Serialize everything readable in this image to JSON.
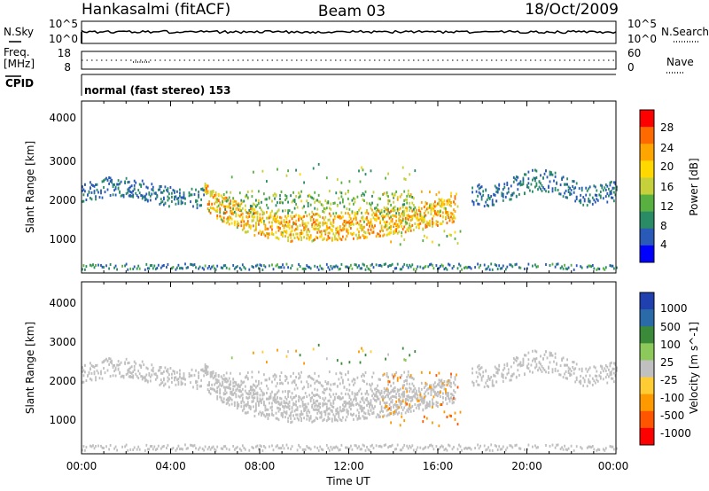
{
  "header": {
    "station": "Hankasalmi (fitACF)",
    "beam": "Beam 03",
    "date": "18/Oct/2009"
  },
  "aux_panels": {
    "nsky_label": "N.Sky",
    "nsky_ticks": [
      "10^5",
      "10^0"
    ],
    "nsearch_ticks": [
      "10^5",
      "10^0"
    ],
    "nsearch_label": "N.Search",
    "freq_label_line1": "Freq.",
    "freq_label_line2": "[MHz]",
    "freq_ticks": [
      "18",
      "8"
    ],
    "nave_ticks": [
      "60",
      "0"
    ],
    "nave_label": "Nave",
    "cpid_label": "CPID",
    "cpid_text": "normal (fast stereo) 153"
  },
  "chart_data": [
    {
      "type": "heatmap",
      "panel": "power",
      "title": "",
      "xlabel": "Time UT",
      "ylabel": "Slant Range [km]",
      "xlim": [
        0,
        24
      ],
      "ylim": [
        200,
        4600
      ],
      "x_tick_labels": [
        "00:00",
        "04:00",
        "08:00",
        "12:00",
        "16:00",
        "20:00",
        "00:00"
      ],
      "y_tick_labels": [
        "4000",
        "3000",
        "2000",
        "1000"
      ],
      "colorbar": {
        "label": "Power [dB]",
        "tick_labels": [
          "28",
          "24",
          "20",
          "16",
          "12",
          "8",
          "4"
        ],
        "colors": [
          "#ff0000",
          "#ff6a00",
          "#ffa500",
          "#ffd800",
          "#c6d03a",
          "#58b040",
          "#2a8c66",
          "#2a5ab8",
          "#0000ff"
        ]
      },
      "features": [
        {
          "name": "evening band",
          "t_start": 0.0,
          "t_end": 5.5,
          "range_low": 2000,
          "range_high": 2500,
          "power_db": 6
        },
        {
          "name": "main echo arc",
          "t_start": 5.5,
          "t_end": 16.8,
          "range_center_min": 1000,
          "range_center_time": 9.5,
          "power_db": 26
        },
        {
          "name": "upper diffuse layer",
          "t_start": 6.0,
          "t_end": 15.0,
          "range_low": 1700,
          "range_high": 2200,
          "power_db": 12
        },
        {
          "name": "morning band",
          "t_start": 17.5,
          "t_end": 24.0,
          "range_low": 2100,
          "range_high": 2700,
          "power_db": 6
        }
      ]
    },
    {
      "type": "heatmap",
      "panel": "velocity",
      "title": "",
      "xlabel": "Time UT",
      "ylabel": "Slant Range [km]",
      "xlim": [
        0,
        24
      ],
      "ylim": [
        200,
        4600
      ],
      "x_tick_labels": [
        "00:00",
        "04:00",
        "08:00",
        "12:00",
        "16:00",
        "20:00",
        "00:00"
      ],
      "y_tick_labels": [
        "4000",
        "3000",
        "2000",
        "1000"
      ],
      "colorbar": {
        "label": "Velocity [m s^-1]",
        "tick_labels": [
          "1000",
          "500",
          "100",
          "25",
          "-25",
          "-100",
          "-500",
          "-1000"
        ],
        "colors": [
          "#2040b0",
          "#2a6aa8",
          "#3a8a3a",
          "#8cc85a",
          "#c0c0c0",
          "#ffcc33",
          "#ff9900",
          "#ff5500",
          "#ff0000"
        ]
      },
      "features": [
        {
          "name": "ground scatter",
          "t_start": 0.0,
          "t_end": 24.0,
          "velocity": 0
        },
        {
          "name": "ionospheric echoes",
          "t_start": 13.5,
          "t_end": 17.0,
          "range_low": 800,
          "range_high": 2400,
          "velocity": -300
        }
      ]
    }
  ],
  "colors": {
    "frame": "#000000",
    "background": "#ffffff"
  }
}
